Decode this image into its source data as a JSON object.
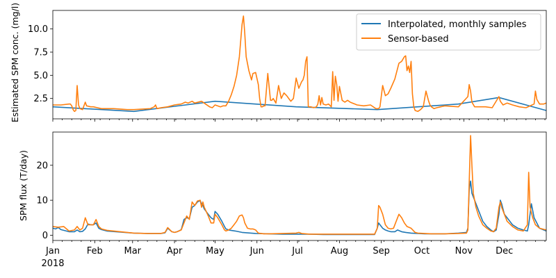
{
  "chart_data": [
    {
      "type": "line",
      "title": "",
      "xlabel": "",
      "ylabel": "Estimated SPM conc. (mg/l)",
      "ylim": [
        0.3,
        12.0
      ],
      "yticks": [
        2.5,
        5.0,
        7.5,
        10.0
      ],
      "ytick_labels": [
        "2.5",
        "5.0",
        "7.5",
        "10.0"
      ],
      "legend": "top-right",
      "grid": false,
      "series": [
        {
          "name": "Interpolated, monthly samples",
          "color": "#1f77b4",
          "x": [
            0,
            60,
            120,
            180,
            240,
            300,
            330,
            365
          ],
          "y": [
            1.6,
            1.1,
            2.2,
            1.6,
            1.3,
            1.9,
            2.6,
            1.2
          ]
        },
        {
          "name": "Sensor-based",
          "color": "#ff7f0e",
          "x": [
            0,
            6,
            12,
            13,
            14,
            15,
            16,
            17,
            18,
            19,
            20,
            22,
            24,
            25,
            28,
            30,
            33,
            36,
            45,
            55,
            60,
            72,
            75,
            76,
            77,
            80,
            85,
            90,
            95,
            98,
            100,
            103,
            105,
            110,
            116,
            118,
            120,
            124,
            126,
            128,
            130,
            132,
            134,
            136,
            138,
            140,
            141,
            142,
            143,
            145,
            147,
            148,
            150,
            152,
            153,
            154,
            155,
            156,
            157,
            159,
            161,
            162,
            163,
            165,
            167,
            169,
            171,
            173,
            175,
            176,
            178,
            180,
            182,
            184,
            185,
            186,
            187,
            188,
            189,
            191,
            193,
            195,
            196,
            197,
            198,
            199,
            200,
            202,
            204,
            206,
            207,
            208,
            209,
            210,
            211,
            212,
            214,
            216,
            218,
            220,
            225,
            230,
            235,
            239,
            241,
            242,
            244,
            246,
            248,
            250,
            253,
            256,
            258,
            260,
            261,
            262,
            263,
            264,
            265,
            266,
            267,
            268,
            270,
            272,
            274,
            276,
            278,
            279,
            280,
            282,
            284,
            290,
            300,
            307,
            308,
            309,
            310,
            312,
            315,
            320,
            325,
            330,
            331,
            333,
            336,
            340,
            345,
            350,
            356,
            357,
            358,
            360,
            363,
            365
          ],
          "y": [
            1.8,
            1.8,
            1.9,
            1.9,
            1.7,
            1.3,
            1.1,
            1.2,
            3.9,
            1.8,
            1.4,
            1.3,
            2.1,
            1.7,
            1.6,
            1.6,
            1.5,
            1.4,
            1.4,
            1.3,
            1.3,
            1.4,
            1.6,
            1.8,
            1.4,
            1.5,
            1.6,
            1.8,
            1.9,
            2.1,
            2.0,
            2.2,
            2.0,
            2.2,
            1.6,
            1.5,
            1.8,
            1.6,
            1.7,
            1.7,
            2.2,
            2.9,
            3.8,
            5.0,
            7.0,
            10.5,
            11.4,
            9.5,
            7.0,
            5.5,
            4.5,
            5.2,
            5.3,
            4.0,
            2.5,
            1.6,
            1.6,
            1.7,
            1.7,
            5.2,
            2.3,
            2.3,
            2.5,
            2.0,
            3.9,
            2.5,
            3.1,
            2.8,
            2.4,
            2.2,
            2.5,
            4.7,
            3.6,
            4.3,
            4.5,
            5.0,
            6.5,
            7.0,
            1.6,
            1.6,
            1.5,
            1.6,
            1.9,
            2.8,
            1.8,
            2.6,
            1.9,
            1.8,
            1.9,
            1.6,
            5.4,
            2.3,
            4.9,
            4.0,
            2.2,
            3.8,
            2.3,
            2.1,
            2.3,
            2.1,
            1.8,
            1.7,
            1.8,
            1.4,
            1.4,
            1.6,
            3.9,
            2.8,
            3.0,
            3.6,
            4.6,
            6.3,
            6.5,
            7.0,
            7.1,
            5.5,
            6.0,
            5.3,
            6.5,
            3.0,
            1.6,
            1.2,
            1.1,
            1.3,
            1.6,
            3.3,
            2.2,
            1.8,
            1.6,
            1.4,
            1.5,
            1.7,
            1.6,
            2.7,
            4.0,
            3.3,
            2.1,
            1.6,
            1.6,
            1.6,
            1.5,
            2.7,
            2.2,
            1.8,
            2.0,
            1.8,
            1.6,
            1.5,
            1.9,
            3.3,
            2.4,
            1.9,
            1.9,
            2.0
          ]
        }
      ],
      "x_axis": {
        "ticks": [
          0,
          31,
          59,
          90,
          120,
          151,
          181,
          212,
          243,
          273,
          304,
          334
        ],
        "tick_labels": [
          "",
          "",
          "",
          "",
          "",
          "",
          "",
          "",
          "",
          "",
          "",
          ""
        ],
        "xlim": [
          0,
          365
        ]
      }
    },
    {
      "type": "line",
      "title": "",
      "xlabel": "",
      "ylabel": "SPM flux (T/day)",
      "ylim": [
        -1.5,
        29.5
      ],
      "yticks": [
        0,
        10,
        20
      ],
      "ytick_labels": [
        "0",
        "10",
        "20"
      ],
      "grid": false,
      "series": [
        {
          "name": "Interpolated, monthly samples",
          "color": "#1f77b4",
          "x": [
            0,
            2,
            4,
            6,
            8,
            12,
            16,
            18,
            20,
            22,
            24,
            26,
            28,
            30,
            32,
            34,
            36,
            40,
            50,
            60,
            70,
            80,
            83,
            85,
            88,
            90,
            92,
            95,
            96,
            97,
            99,
            101,
            103,
            105,
            107,
            109,
            110,
            111,
            112,
            115,
            117,
            119,
            120,
            122,
            125,
            127,
            128,
            130,
            135,
            140,
            150,
            160,
            170,
            180,
            190,
            200,
            220,
            238,
            240,
            241,
            242,
            244,
            246,
            248,
            250,
            253,
            255,
            258,
            261,
            265,
            270,
            275,
            280,
            290,
            300,
            306,
            307,
            308,
            309,
            310,
            312,
            315,
            318,
            321,
            324,
            326,
            328,
            330,
            331,
            332,
            334,
            336,
            340,
            344,
            348,
            351,
            352,
            354,
            356,
            360,
            365
          ],
          "y": [
            2.0,
            1.8,
            2.2,
            1.6,
            1.4,
            1.0,
            1.0,
            1.5,
            1.0,
            1.1,
            1.8,
            3.2,
            3.0,
            3.0,
            3.5,
            2.0,
            1.6,
            1.2,
            0.9,
            0.6,
            0.5,
            0.5,
            0.7,
            2.0,
            1.0,
            0.8,
            1.0,
            1.6,
            3.0,
            4.5,
            5.0,
            4.8,
            8.0,
            8.5,
            9.5,
            9.9,
            9.0,
            8.5,
            7.5,
            6.0,
            5.0,
            4.5,
            6.8,
            6.0,
            4.0,
            2.5,
            1.8,
            1.5,
            1.2,
            0.8,
            0.5,
            0.4,
            0.3,
            0.3,
            0.3,
            0.2,
            0.2,
            0.2,
            2.0,
            3.5,
            3.0,
            2.0,
            1.5,
            1.2,
            1.0,
            1.0,
            1.5,
            1.0,
            0.8,
            0.6,
            0.5,
            0.4,
            0.4,
            0.4,
            0.6,
            0.8,
            2.0,
            13.0,
            15.5,
            12.0,
            10.0,
            7.0,
            4.0,
            2.5,
            1.5,
            1.0,
            1.5,
            6.0,
            10.0,
            9.0,
            6.0,
            5.0,
            3.0,
            2.0,
            1.5,
            1.2,
            3.0,
            9.0,
            5.0,
            2.0,
            1.2
          ]
        },
        {
          "name": "Sensor-based",
          "color": "#ff7f0e",
          "x": [
            0,
            4,
            8,
            12,
            16,
            18,
            20,
            22,
            24,
            26,
            28,
            30,
            32,
            34,
            36,
            40,
            50,
            60,
            70,
            80,
            83,
            85,
            88,
            90,
            92,
            95,
            96,
            97,
            99,
            101,
            103,
            105,
            107,
            109,
            110,
            111,
            112,
            115,
            117,
            119,
            120,
            122,
            125,
            127,
            128,
            130,
            132,
            134,
            136,
            138,
            140,
            141,
            142,
            144,
            146,
            148,
            150,
            152,
            156,
            160,
            170,
            180,
            182,
            184,
            190,
            200,
            220,
            238,
            240,
            241,
            242,
            244,
            246,
            248,
            250,
            252,
            254,
            256,
            258,
            260,
            262,
            265,
            268,
            270,
            275,
            280,
            290,
            300,
            306,
            307,
            308,
            309,
            310,
            311,
            313,
            315,
            318,
            321,
            324,
            326,
            328,
            330,
            331,
            332,
            334,
            336,
            340,
            344,
            348,
            351,
            352,
            353,
            355,
            357,
            360,
            365
          ],
          "y": [
            2.5,
            2.3,
            2.5,
            1.2,
            1.5,
            2.5,
            1.5,
            2.0,
            5.0,
            3.0,
            3.0,
            3.0,
            4.5,
            2.5,
            1.8,
            1.4,
            1.0,
            0.6,
            0.5,
            0.5,
            0.8,
            2.2,
            1.0,
            0.8,
            1.0,
            1.5,
            2.5,
            3.5,
            5.5,
            4.5,
            9.5,
            8.5,
            9.8,
            10.0,
            8.0,
            9.5,
            8.0,
            5.5,
            3.5,
            3.5,
            6.0,
            5.0,
            3.0,
            1.5,
            1.2,
            1.5,
            2.0,
            3.0,
            4.0,
            5.5,
            5.8,
            5.0,
            3.5,
            2.0,
            1.8,
            1.8,
            1.5,
            0.6,
            0.4,
            0.4,
            0.5,
            0.6,
            0.8,
            0.5,
            0.3,
            0.3,
            0.3,
            0.3,
            2.0,
            8.5,
            8.0,
            6.0,
            3.0,
            2.0,
            1.8,
            2.0,
            4.0,
            6.0,
            5.0,
            3.5,
            2.5,
            2.0,
            0.8,
            0.6,
            0.5,
            0.4,
            0.4,
            0.5,
            0.6,
            1.5,
            15.0,
            28.5,
            20.0,
            12.0,
            8.0,
            5.5,
            3.0,
            2.0,
            1.2,
            1.0,
            2.0,
            8.0,
            9.5,
            8.0,
            6.0,
            4.0,
            2.5,
            1.5,
            1.2,
            3.0,
            18.0,
            8.0,
            5.0,
            3.0,
            2.0,
            1.5
          ]
        }
      ],
      "x_axis": {
        "ticks": [
          0,
          31,
          59,
          90,
          120,
          151,
          181,
          212,
          243,
          273,
          304,
          334
        ],
        "tick_labels": [
          "Jan",
          "Feb",
          "Mar",
          "Apr",
          "May",
          "Jun",
          "Jul",
          "Aug",
          "Sep",
          "Oct",
          "Nov",
          "Dec"
        ],
        "xlim": [
          0,
          365
        ],
        "year_label": "2018"
      }
    }
  ]
}
